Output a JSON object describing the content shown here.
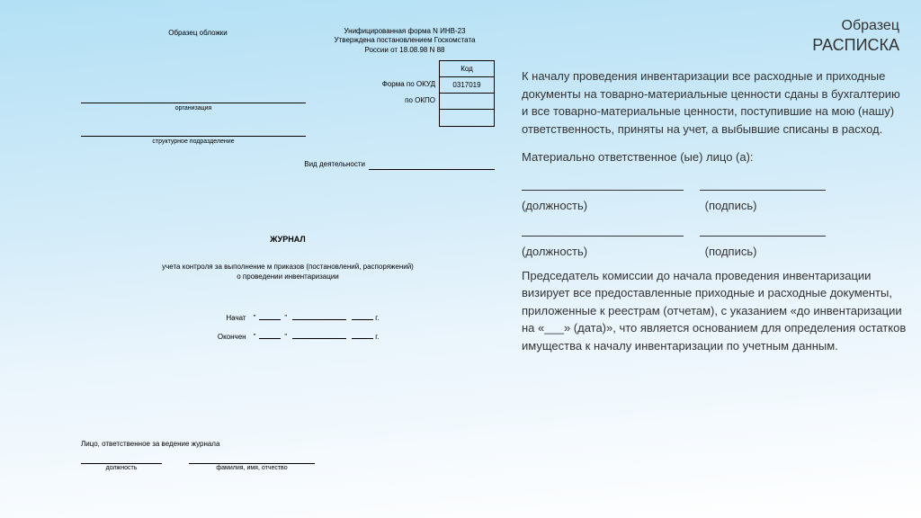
{
  "left": {
    "cover_label": "Образец обложки",
    "form_line1": "Унифицированная форма N ИНВ-23",
    "form_line2": "Утверждена постановлением Госкомстата",
    "form_line3": "России от 18.08.98 N 88",
    "code_header": "Код",
    "okud_label": "Форма по ОКУД",
    "okud_value": "0317019",
    "okpo_label": "по ОКПО",
    "org_caption": "организация",
    "subdiv_caption": "структурное подразделение",
    "activity_label": "Вид деятельности",
    "journal_title": "ЖУРНАЛ",
    "journal_sub": "учета контроля за выполнение м приказов (постановлений, распоряжений)\nо проведении инвентаризации",
    "started_label": "Начат",
    "ended_label": "Окончен",
    "year_suffix": "г.",
    "quote": "\"",
    "responsible_label": "Лицо, ответственное за ведение журнала",
    "sig_position": "должность",
    "sig_name": "фамилия, имя, отчество"
  },
  "right": {
    "sample": "Образец",
    "title": "РАСПИСКА",
    "para1": "К началу проведения инвентаризации все расходные и приходные документы на товарно-материальные ценности сданы в бухгалтерию и все товарно-материальные ценности, поступившие на мою (нашу) ответственность, приняты на учет, а выбывшие списаны в расход.",
    "para2": "Материально ответственное (ые) лицо (а):",
    "position": "(должность)",
    "signature": "(подпись)",
    "para3": "Председатель комиссии до начала проведения инвентаризации визирует все предоставленные приходные и расходные документы, приложенные к реестрам (отчетам), с указанием «до инвентаризации на «___» (дата)», что является основанием для определения остатков имущества к началу инвентаризации по учетным данным."
  },
  "colors": {
    "text": "#333333",
    "border": "#000000",
    "bg_top": "#b3e0f5",
    "bg_bottom": "#ffffff"
  }
}
